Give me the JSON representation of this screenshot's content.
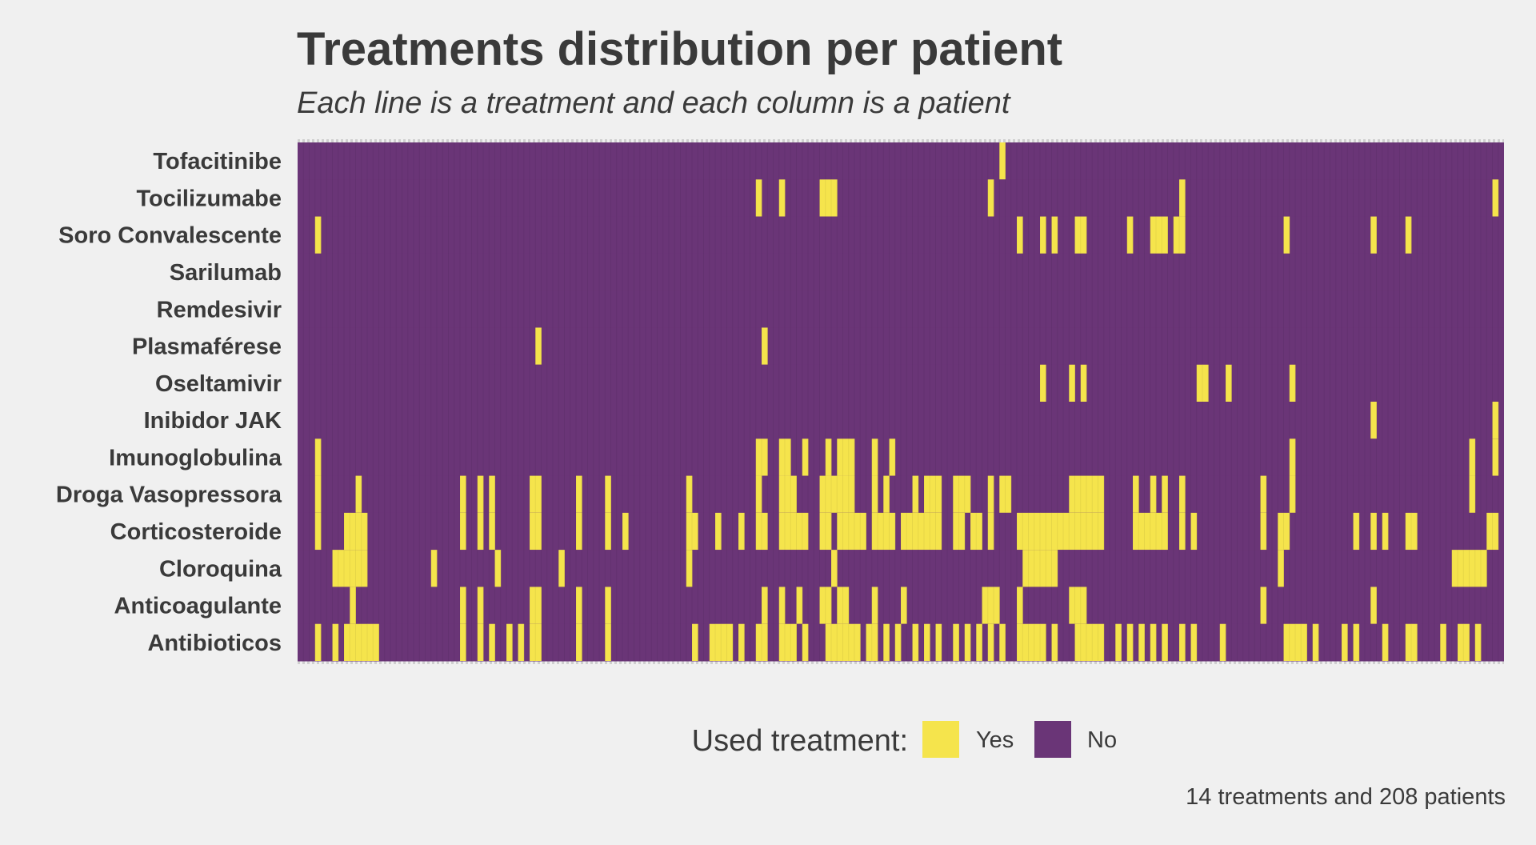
{
  "chart_data": {
    "type": "heatmap",
    "title": "Treatments distribution per patient",
    "subtitle": "Each line is a treatment and each column is a patient",
    "caption": "14 treatments and 208 patients",
    "n_patients": 208,
    "legend": {
      "title": "Used treatment:",
      "placement": "bottom",
      "items": [
        {
          "label": "Yes",
          "color": "#f5e44c"
        },
        {
          "label": "No",
          "color": "#6a3577"
        }
      ]
    },
    "rows": [
      {
        "name": "Tofacitinibe",
        "yes": [
          121
        ]
      },
      {
        "name": "Tocilizumabe",
        "yes": [
          79,
          83,
          90,
          91,
          92,
          119,
          152,
          206
        ]
      },
      {
        "name": "Soro Convalescente",
        "yes": [
          3,
          124,
          128,
          130,
          134,
          135,
          143,
          147,
          148,
          149,
          151,
          152,
          170,
          185,
          191
        ]
      },
      {
        "name": "Sarilumab",
        "yes": []
      },
      {
        "name": "Remdesivir",
        "yes": []
      },
      {
        "name": "Plasmaférese",
        "yes": [
          41,
          80
        ]
      },
      {
        "name": "Oseltamivir",
        "yes": [
          128,
          133,
          135,
          155,
          156,
          160,
          171
        ]
      },
      {
        "name": "Inibidor JAK",
        "yes": [
          185,
          206
        ]
      },
      {
        "name": "Imunoglobulina",
        "yes": [
          3,
          79,
          80,
          83,
          84,
          87,
          91,
          93,
          94,
          95,
          99,
          102,
          171,
          202,
          206
        ]
      },
      {
        "name": "Droga Vasopressora",
        "yes": [
          3,
          10,
          28,
          31,
          33,
          40,
          41,
          48,
          53,
          67,
          79,
          83,
          84,
          85,
          90,
          91,
          92,
          93,
          94,
          95,
          99,
          101,
          106,
          108,
          109,
          110,
          113,
          114,
          115,
          119,
          121,
          122,
          133,
          134,
          135,
          136,
          137,
          138,
          144,
          147,
          149,
          152,
          166,
          171,
          202
        ]
      },
      {
        "name": "Corticosteroide",
        "yes": [
          3,
          8,
          9,
          10,
          11,
          28,
          31,
          33,
          40,
          41,
          48,
          53,
          56,
          67,
          68,
          72,
          76,
          79,
          80,
          83,
          84,
          85,
          86,
          87,
          90,
          91,
          93,
          94,
          95,
          96,
          97,
          99,
          100,
          101,
          102,
          104,
          105,
          106,
          107,
          108,
          109,
          110,
          113,
          114,
          116,
          117,
          119,
          124,
          125,
          126,
          127,
          128,
          129,
          130,
          131,
          132,
          133,
          134,
          135,
          136,
          137,
          138,
          144,
          145,
          146,
          147,
          148,
          149,
          152,
          154,
          166,
          169,
          170,
          182,
          185,
          187,
          191,
          192,
          205,
          206
        ]
      },
      {
        "name": "Cloroquina",
        "yes": [
          6,
          7,
          8,
          9,
          10,
          11,
          23,
          34,
          45,
          67,
          92,
          125,
          126,
          127,
          128,
          129,
          130,
          169,
          199,
          200,
          201,
          202,
          203,
          204
        ]
      },
      {
        "name": "Anticoagulante",
        "yes": [
          9,
          28,
          31,
          40,
          41,
          48,
          53,
          80,
          83,
          86,
          90,
          91,
          93,
          94,
          99,
          104,
          118,
          119,
          120,
          124,
          133,
          134,
          135,
          166,
          185
        ]
      },
      {
        "name": "Antibioticos",
        "yes": [
          3,
          6,
          8,
          9,
          10,
          11,
          12,
          13,
          28,
          31,
          33,
          36,
          38,
          40,
          41,
          48,
          53,
          68,
          71,
          72,
          73,
          74,
          76,
          79,
          80,
          83,
          84,
          85,
          87,
          91,
          92,
          93,
          94,
          95,
          96,
          98,
          99,
          101,
          103,
          106,
          108,
          110,
          113,
          115,
          117,
          119,
          121,
          124,
          125,
          126,
          127,
          128,
          130,
          134,
          135,
          136,
          137,
          138,
          141,
          143,
          145,
          147,
          149,
          152,
          154,
          159,
          170,
          171,
          172,
          173,
          175,
          180,
          182,
          187,
          191,
          192,
          197,
          200,
          201,
          203
        ]
      }
    ]
  }
}
